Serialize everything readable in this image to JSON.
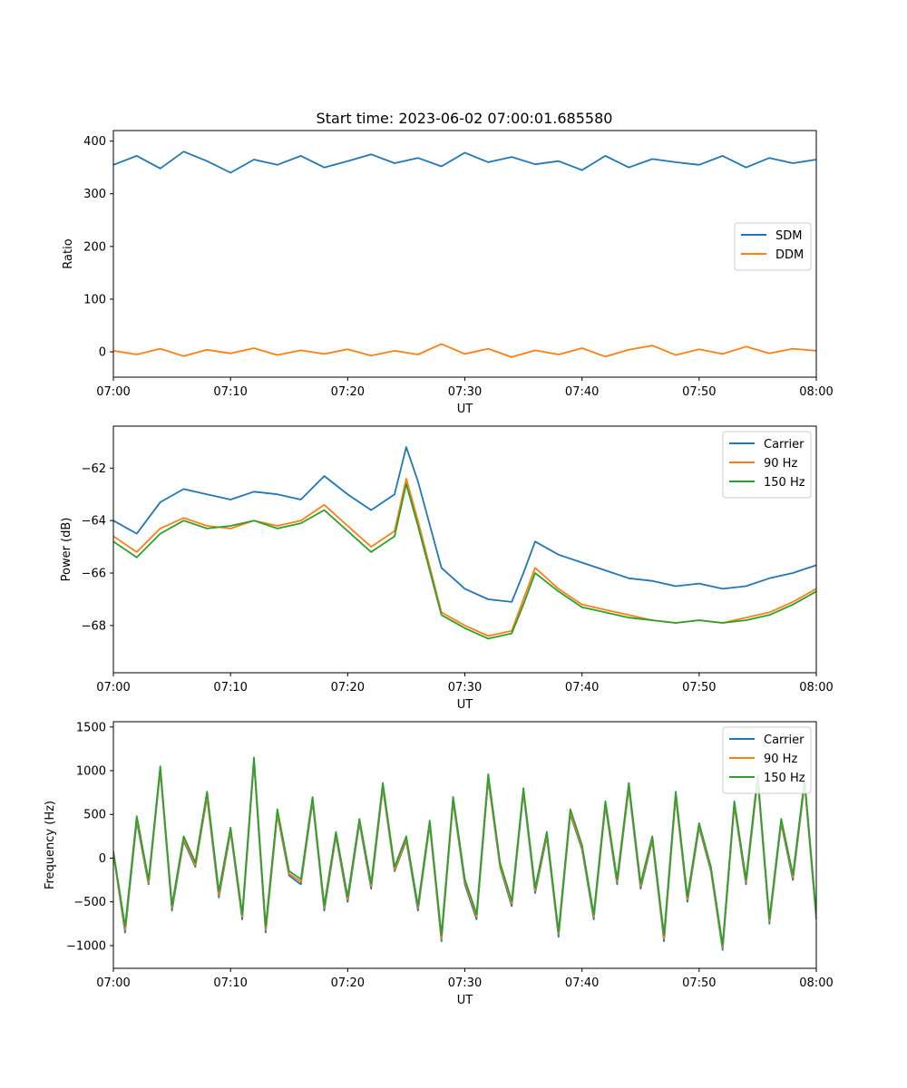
{
  "title": "Start time: 2023-06-02 07:00:01.685580",
  "chart_data": [
    {
      "type": "line",
      "title": "Start time: 2023-06-02 07:00:01.685580",
      "xlabel": "UT",
      "ylabel": "Ratio",
      "xlim": [
        "07:00",
        "08:00"
      ],
      "ylim": [
        -48,
        420
      ],
      "xticks": [
        "07:00",
        "07:10",
        "07:20",
        "07:30",
        "07:40",
        "07:50",
        "08:00"
      ],
      "yticks": [
        0,
        100,
        200,
        300,
        400
      ],
      "legend_position": "center-right",
      "series": [
        {
          "name": "SDM",
          "color": "#1f77b4",
          "x": [
            "07:00",
            "07:02",
            "07:04",
            "07:06",
            "07:08",
            "07:10",
            "07:12",
            "07:14",
            "07:16",
            "07:18",
            "07:20",
            "07:22",
            "07:24",
            "07:26",
            "07:28",
            "07:30",
            "07:32",
            "07:34",
            "07:36",
            "07:38",
            "07:40",
            "07:42",
            "07:44",
            "07:46",
            "07:48",
            "07:50",
            "07:52",
            "07:54",
            "07:56",
            "07:58",
            "08:00"
          ],
          "y": [
            355,
            372,
            348,
            380,
            362,
            340,
            365,
            355,
            372,
            350,
            362,
            375,
            358,
            368,
            352,
            378,
            360,
            370,
            356,
            362,
            345,
            372,
            350,
            366,
            360,
            355,
            372,
            350,
            368,
            358,
            365
          ]
        },
        {
          "name": "DDM",
          "color": "#ff7f0e",
          "x": [
            "07:00",
            "07:02",
            "07:04",
            "07:06",
            "07:08",
            "07:10",
            "07:12",
            "07:14",
            "07:16",
            "07:18",
            "07:20",
            "07:22",
            "07:24",
            "07:26",
            "07:28",
            "07:30",
            "07:32",
            "07:34",
            "07:36",
            "07:38",
            "07:40",
            "07:42",
            "07:44",
            "07:46",
            "07:48",
            "07:50",
            "07:52",
            "07:54",
            "07:56",
            "07:58",
            "08:00"
          ],
          "y": [
            2,
            -5,
            6,
            -8,
            4,
            -3,
            7,
            -6,
            3,
            -4,
            5,
            -7,
            2,
            -5,
            15,
            -4,
            6,
            -10,
            3,
            -5,
            7,
            -9,
            4,
            12,
            -6,
            5,
            -4,
            10,
            -3,
            6,
            2
          ]
        }
      ]
    },
    {
      "type": "line",
      "xlabel": "UT",
      "ylabel": "Power (dB)",
      "xlim": [
        "07:00",
        "08:00"
      ],
      "ylim": [
        -69.8,
        -60.4
      ],
      "xticks": [
        "07:00",
        "07:10",
        "07:20",
        "07:30",
        "07:40",
        "07:50",
        "08:00"
      ],
      "yticks": [
        -62,
        -64,
        -66,
        -68
      ],
      "legend_position": "top-right",
      "series": [
        {
          "name": "Carrier",
          "color": "#1f77b4",
          "x": [
            "07:00",
            "07:02",
            "07:04",
            "07:06",
            "07:08",
            "07:10",
            "07:12",
            "07:14",
            "07:16",
            "07:18",
            "07:20",
            "07:22",
            "07:24",
            "07:25",
            "07:26",
            "07:28",
            "07:30",
            "07:32",
            "07:34",
            "07:35",
            "07:36",
            "07:38",
            "07:40",
            "07:42",
            "07:44",
            "07:46",
            "07:48",
            "07:50",
            "07:52",
            "07:54",
            "07:56",
            "07:58",
            "08:00"
          ],
          "y": [
            -64.0,
            -64.5,
            -63.3,
            -62.8,
            -63.0,
            -63.2,
            -62.9,
            -63.0,
            -63.2,
            -62.3,
            -63.0,
            -63.6,
            -63.0,
            -61.2,
            -62.5,
            -65.8,
            -66.6,
            -67.0,
            -67.1,
            -66.0,
            -64.8,
            -65.3,
            -65.6,
            -65.9,
            -66.2,
            -66.3,
            -66.5,
            -66.4,
            -66.6,
            -66.5,
            -66.2,
            -66.0,
            -65.7
          ]
        },
        {
          "name": "90 Hz",
          "color": "#ff7f0e",
          "x": [
            "07:00",
            "07:02",
            "07:04",
            "07:06",
            "07:08",
            "07:10",
            "07:12",
            "07:14",
            "07:16",
            "07:18",
            "07:20",
            "07:22",
            "07:24",
            "07:25",
            "07:26",
            "07:28",
            "07:30",
            "07:32",
            "07:34",
            "07:35",
            "07:36",
            "07:38",
            "07:40",
            "07:42",
            "07:44",
            "07:46",
            "07:48",
            "07:50",
            "07:52",
            "07:54",
            "07:56",
            "07:58",
            "08:00"
          ],
          "y": [
            -64.6,
            -65.2,
            -64.3,
            -63.9,
            -64.2,
            -64.3,
            -64.0,
            -64.2,
            -64.0,
            -63.4,
            -64.2,
            -65.0,
            -64.4,
            -62.4,
            -64.0,
            -67.5,
            -68.0,
            -68.4,
            -68.2,
            -67.0,
            -65.8,
            -66.6,
            -67.2,
            -67.4,
            -67.6,
            -67.8,
            -67.9,
            -67.8,
            -67.9,
            -67.7,
            -67.5,
            -67.1,
            -66.6
          ]
        },
        {
          "name": "150 Hz",
          "color": "#2ca02c",
          "x": [
            "07:00",
            "07:02",
            "07:04",
            "07:06",
            "07:08",
            "07:10",
            "07:12",
            "07:14",
            "07:16",
            "07:18",
            "07:20",
            "07:22",
            "07:24",
            "07:25",
            "07:26",
            "07:28",
            "07:30",
            "07:32",
            "07:34",
            "07:35",
            "07:36",
            "07:38",
            "07:40",
            "07:42",
            "07:44",
            "07:46",
            "07:48",
            "07:50",
            "07:52",
            "07:54",
            "07:56",
            "07:58",
            "08:00"
          ],
          "y": [
            -64.8,
            -65.4,
            -64.5,
            -64.0,
            -64.3,
            -64.2,
            -64.0,
            -64.3,
            -64.1,
            -63.6,
            -64.4,
            -65.2,
            -64.6,
            -62.6,
            -64.2,
            -67.6,
            -68.1,
            -68.5,
            -68.3,
            -67.2,
            -66.0,
            -66.7,
            -67.3,
            -67.5,
            -67.7,
            -67.8,
            -67.9,
            -67.8,
            -67.9,
            -67.8,
            -67.6,
            -67.2,
            -66.7
          ]
        }
      ]
    },
    {
      "type": "line",
      "xlabel": "UT",
      "ylabel": "Frequency (Hz)",
      "xlim": [
        "07:00",
        "08:00"
      ],
      "ylim": [
        -1260,
        1560
      ],
      "xticks": [
        "07:00",
        "07:10",
        "07:20",
        "07:30",
        "07:40",
        "07:50",
        "08:00"
      ],
      "yticks": [
        -1000,
        -500,
        0,
        500,
        1000,
        1500
      ],
      "legend_position": "top-right",
      "series": [
        {
          "name": "Carrier",
          "color": "#1f77b4",
          "x": [
            "07:00",
            "07:01",
            "07:02",
            "07:03",
            "07:04",
            "07:05",
            "07:06",
            "07:07",
            "07:08",
            "07:09",
            "07:10",
            "07:11",
            "07:12",
            "07:13",
            "07:14",
            "07:15",
            "07:16",
            "07:17",
            "07:18",
            "07:19",
            "07:20",
            "07:21",
            "07:22",
            "07:23",
            "07:24",
            "07:25",
            "07:26",
            "07:27",
            "07:28",
            "07:29",
            "07:30",
            "07:31",
            "07:32",
            "07:33",
            "07:34",
            "07:35",
            "07:36",
            "07:37",
            "07:38",
            "07:39",
            "07:40",
            "07:41",
            "07:42",
            "07:43",
            "07:44",
            "07:45",
            "07:46",
            "07:47",
            "07:48",
            "07:49",
            "07:50",
            "07:51",
            "07:52",
            "07:53",
            "07:54",
            "07:55",
            "07:56",
            "07:57",
            "07:58",
            "07:59",
            "08:00"
          ],
          "y": [
            50,
            -850,
            420,
            -300,
            1000,
            -600,
            200,
            -100,
            700,
            -450,
            300,
            -700,
            1100,
            -850,
            500,
            -200,
            -300,
            650,
            -600,
            250,
            -500,
            400,
            -350,
            800,
            -150,
            200,
            -600,
            380,
            -950,
            650,
            -300,
            -700,
            900,
            -100,
            -550,
            750,
            -400,
            250,
            -900,
            500,
            100,
            -700,
            600,
            -300,
            800,
            -350,
            200,
            -950,
            700,
            -500,
            350,
            -150,
            -1050,
            600,
            -300,
            900,
            -750,
            400,
            -250,
            850,
            -700
          ]
        },
        {
          "name": "90 Hz",
          "color": "#ff7f0e",
          "x": [
            "07:00",
            "07:01",
            "07:02",
            "07:03",
            "07:04",
            "07:05",
            "07:06",
            "07:07",
            "07:08",
            "07:09",
            "07:10",
            "07:11",
            "07:12",
            "07:13",
            "07:14",
            "07:15",
            "07:16",
            "07:17",
            "07:18",
            "07:19",
            "07:20",
            "07:21",
            "07:22",
            "07:23",
            "07:24",
            "07:25",
            "07:26",
            "07:27",
            "07:28",
            "07:29",
            "07:30",
            "07:31",
            "07:32",
            "07:33",
            "07:34",
            "07:35",
            "07:36",
            "07:37",
            "07:38",
            "07:39",
            "07:40",
            "07:41",
            "07:42",
            "07:43",
            "07:44",
            "07:45",
            "07:46",
            "07:47",
            "07:48",
            "07:49",
            "07:50",
            "07:51",
            "07:52",
            "07:53",
            "07:54",
            "07:55",
            "07:56",
            "07:57",
            "07:58",
            "07:59",
            "08:00"
          ],
          "y": [
            60,
            -820,
            450,
            -280,
            1020,
            -570,
            220,
            -80,
            720,
            -420,
            320,
            -670,
            1120,
            -820,
            520,
            -180,
            -270,
            670,
            -570,
            270,
            -470,
            420,
            -320,
            820,
            -130,
            220,
            -570,
            400,
            -920,
            670,
            -270,
            -670,
            920,
            -80,
            -520,
            770,
            -370,
            270,
            -870,
            520,
            120,
            -670,
            620,
            -270,
            820,
            -320,
            220,
            -920,
            720,
            -470,
            370,
            -130,
            -1020,
            620,
            -270,
            920,
            -720,
            420,
            -220,
            870,
            -670
          ]
        },
        {
          "name": "150 Hz",
          "color": "#2ca02c",
          "x": [
            "07:00",
            "07:01",
            "07:02",
            "07:03",
            "07:04",
            "07:05",
            "07:06",
            "07:07",
            "07:08",
            "07:09",
            "07:10",
            "07:11",
            "07:12",
            "07:13",
            "07:14",
            "07:15",
            "07:16",
            "07:17",
            "07:18",
            "07:19",
            "07:20",
            "07:21",
            "07:22",
            "07:23",
            "07:24",
            "07:25",
            "07:26",
            "07:27",
            "07:28",
            "07:29",
            "07:30",
            "07:31",
            "07:32",
            "07:33",
            "07:34",
            "07:35",
            "07:36",
            "07:37",
            "07:38",
            "07:39",
            "07:40",
            "07:41",
            "07:42",
            "07:43",
            "07:44",
            "07:45",
            "07:46",
            "07:47",
            "07:48",
            "07:49",
            "07:50",
            "07:51",
            "07:52",
            "07:53",
            "07:54",
            "07:55",
            "07:56",
            "07:57",
            "07:58",
            "07:59",
            "08:00"
          ],
          "y": [
            80,
            -780,
            480,
            -250,
            1050,
            -540,
            250,
            -50,
            760,
            -380,
            350,
            -640,
            1150,
            -780,
            560,
            -150,
            -240,
            700,
            -540,
            300,
            -440,
            450,
            -290,
            860,
            -100,
            250,
            -540,
            430,
            -880,
            700,
            -240,
            -640,
            960,
            -50,
            -490,
            800,
            -340,
            300,
            -840,
            560,
            150,
            -640,
            650,
            -240,
            860,
            -290,
            250,
            -880,
            760,
            -440,
            400,
            -100,
            -990,
            650,
            -240,
            950,
            -690,
            450,
            -190,
            900,
            -640
          ]
        }
      ]
    }
  ]
}
